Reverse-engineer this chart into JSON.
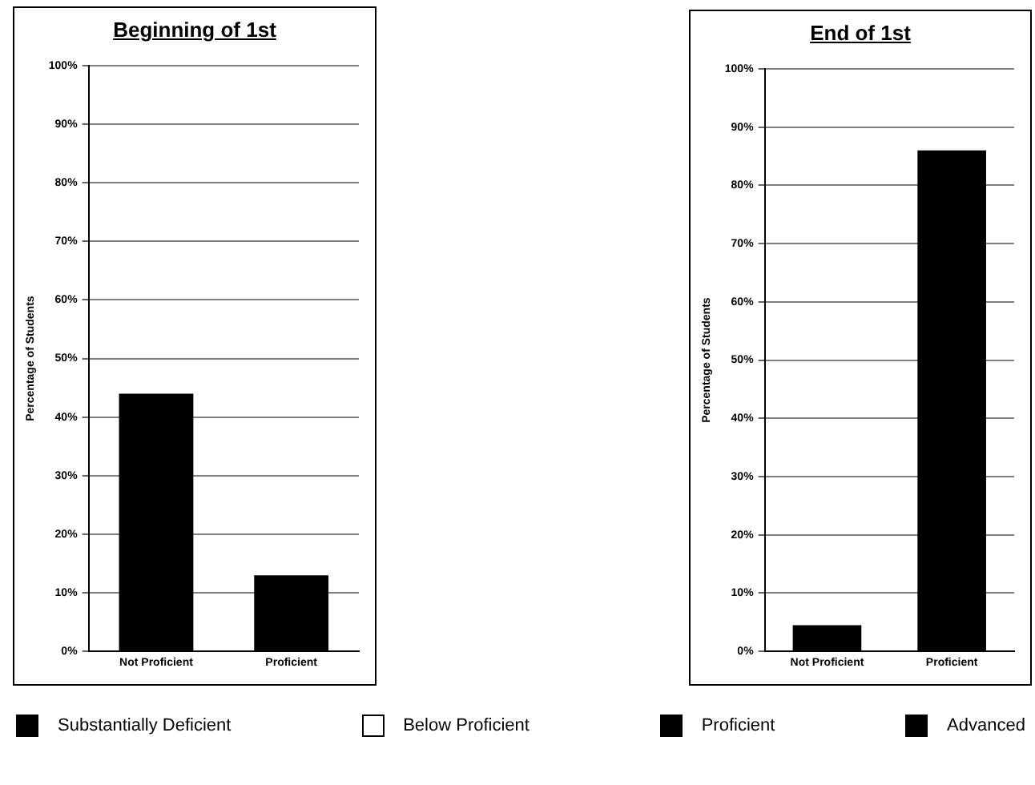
{
  "chart_data": [
    {
      "type": "bar",
      "title": "Beginning of 1st",
      "ylabel": "Percentage of Students",
      "categories": [
        "Not Proficient",
        "Proficient"
      ],
      "values": [
        44,
        13
      ],
      "color": "#000000",
      "ylim": [
        0,
        100
      ],
      "yticks": [
        {
          "value": 0,
          "label": "0%"
        },
        {
          "value": 10,
          "label": "10%"
        },
        {
          "value": 20,
          "label": "20%"
        },
        {
          "value": 30,
          "label": "30%"
        },
        {
          "value": 40,
          "label": "40%"
        },
        {
          "value": 50,
          "label": "50%"
        },
        {
          "value": 60,
          "label": "60%"
        },
        {
          "value": 70,
          "label": "70%"
        },
        {
          "value": 80,
          "label": "80%"
        },
        {
          "value": 90,
          "label": "90%"
        },
        {
          "value": 100,
          "label": "100%"
        }
      ],
      "grid": "y",
      "legend": false
    },
    {
      "type": "bar",
      "title": "End of 1st",
      "ylabel": "Percentage of Students",
      "categories": [
        "Not Proficient",
        "Proficient"
      ],
      "values": [
        4.5,
        86
      ],
      "color": "#000000",
      "ylim": [
        0,
        100
      ],
      "yticks": [
        {
          "value": 0,
          "label": "0%"
        },
        {
          "value": 10,
          "label": "10%"
        },
        {
          "value": 20,
          "label": "20%"
        },
        {
          "value": 30,
          "label": "30%"
        },
        {
          "value": 40,
          "label": "40%"
        },
        {
          "value": 50,
          "label": "50%"
        },
        {
          "value": 60,
          "label": "60%"
        },
        {
          "value": 70,
          "label": "70%"
        },
        {
          "value": 80,
          "label": "80%"
        },
        {
          "value": 90,
          "label": "90%"
        },
        {
          "value": 100,
          "label": "100%"
        }
      ],
      "grid": "y",
      "legend": false
    },
    {
      "type": "other",
      "categories": [
        "Substantially Deficient",
        "Below Proficient",
        "Proficient",
        "Advanced"
      ],
      "colors": [
        "#000000",
        "#ffffff",
        "#000000",
        "#000000"
      ]
    }
  ]
}
